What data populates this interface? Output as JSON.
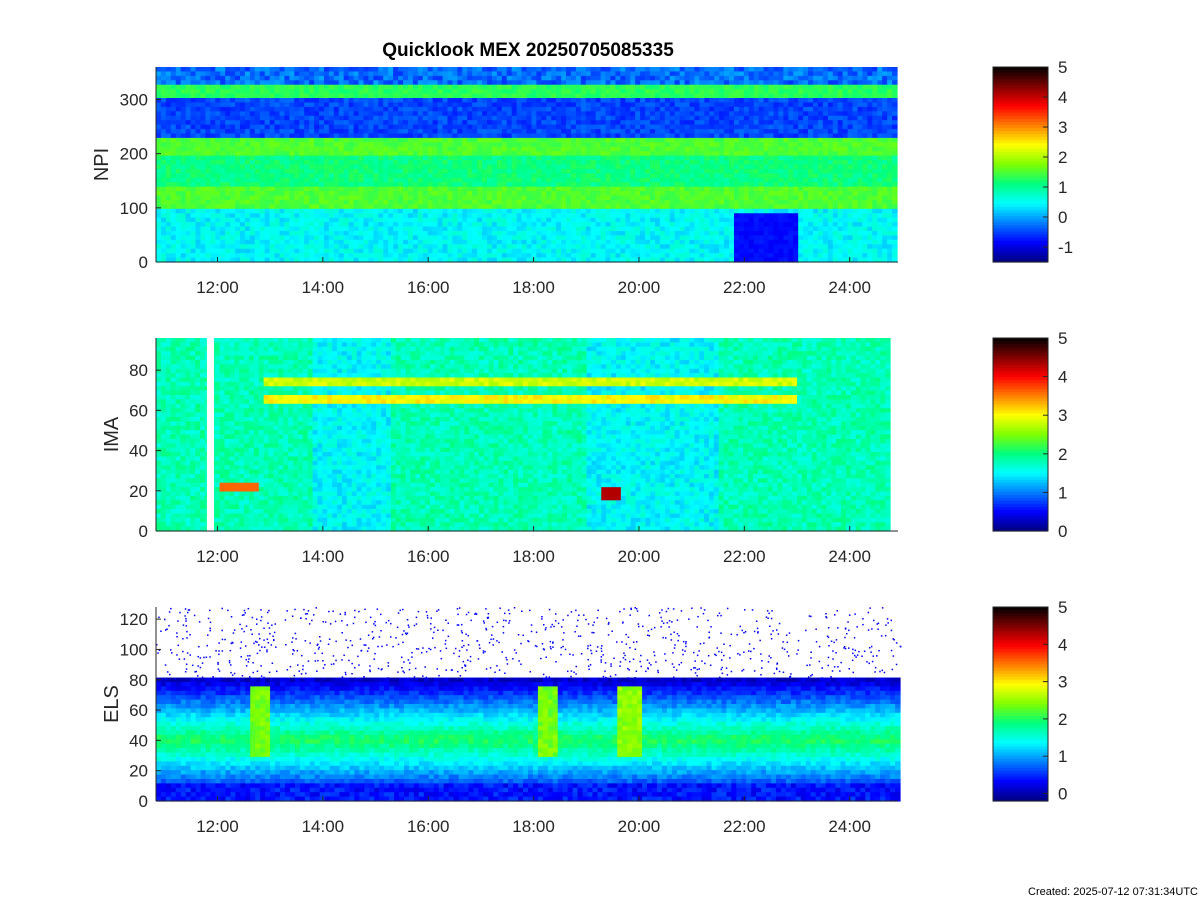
{
  "title": "Quicklook MEX 20250705085335",
  "created": "Created: 2025-07-12 07:31:34UTC",
  "colormap": [
    "#00007f",
    "#0000ff",
    "#007fff",
    "#00ffff",
    "#00ff7f",
    "#7fff00",
    "#ffff00",
    "#ff7f00",
    "#ff0000",
    "#7f0000",
    "#000000"
  ],
  "chart_data": [
    {
      "type": "heatmap",
      "ylabel": "NPI",
      "xlim": [
        "10:50",
        "24:55"
      ],
      "x_ticks": [
        "12:00",
        "14:00",
        "16:00",
        "18:00",
        "20:00",
        "22:00",
        "24:00"
      ],
      "ylim": [
        0,
        360
      ],
      "y_ticks": [
        0,
        100,
        200,
        300
      ],
      "colorbar": {
        "range": [
          -1.5,
          5
        ],
        "ticks": [
          -1,
          0,
          1,
          2,
          3,
          4,
          5
        ]
      },
      "features": [
        {
          "kind": "band",
          "y_range": [
            100,
            140
          ],
          "level": 1.5
        },
        {
          "kind": "band",
          "y_range": [
            200,
            225
          ],
          "level": 1.5
        },
        {
          "kind": "band",
          "y_range": [
            305,
            325
          ],
          "level": 1.3
        },
        {
          "kind": "time_gap_low",
          "x_range": [
            "21:50",
            "23:00"
          ],
          "y_range": [
            0,
            90
          ]
        }
      ]
    },
    {
      "type": "heatmap",
      "ylabel": "IMA",
      "xlim": [
        "10:50",
        "24:55"
      ],
      "x_ticks": [
        "12:00",
        "14:00",
        "16:00",
        "18:00",
        "20:00",
        "22:00",
        "24:00"
      ],
      "ylim": [
        0,
        96
      ],
      "y_ticks": [
        0,
        20,
        40,
        60,
        80
      ],
      "colorbar": {
        "range": [
          0,
          5
        ],
        "ticks": [
          0,
          1,
          2,
          3,
          4,
          5
        ]
      },
      "data_gap": {
        "x_range": [
          "11:48",
          "11:56"
        ]
      },
      "features": [
        {
          "kind": "line",
          "x_range": [
            "12:50",
            "23:00"
          ],
          "y": 66,
          "level": 3.0
        },
        {
          "kind": "line",
          "x_range": [
            "12:50",
            "23:00"
          ],
          "y": 74,
          "level": 2.8
        },
        {
          "kind": "spot",
          "x_range": [
            "12:00",
            "12:45"
          ],
          "y": 22,
          "level": 3.6
        },
        {
          "kind": "spot",
          "x_range": [
            "19:15",
            "19:40"
          ],
          "y": 19,
          "level": 4.3
        }
      ]
    },
    {
      "type": "heatmap",
      "ylabel": "ELS",
      "xlim": [
        "10:50",
        "24:55"
      ],
      "x_ticks": [
        "12:00",
        "14:00",
        "16:00",
        "18:00",
        "20:00",
        "22:00",
        "24:00"
      ],
      "ylim": [
        0,
        128
      ],
      "y_ticks": [
        0,
        20,
        40,
        60,
        80,
        100,
        120
      ],
      "colorbar": {
        "range": [
          -0.2,
          5
        ],
        "ticks": [
          0,
          1,
          2,
          3,
          4,
          5
        ]
      },
      "features": [
        {
          "kind": "main_band",
          "y_range": [
            20,
            75
          ],
          "peak_y": 40,
          "level": 2.0
        },
        {
          "kind": "burst",
          "x": "12:50",
          "level": 2.5
        },
        {
          "kind": "burst",
          "x": "18:15",
          "level": 2.5
        },
        {
          "kind": "burst",
          "x": "19:50",
          "level": 2.6
        }
      ]
    }
  ]
}
